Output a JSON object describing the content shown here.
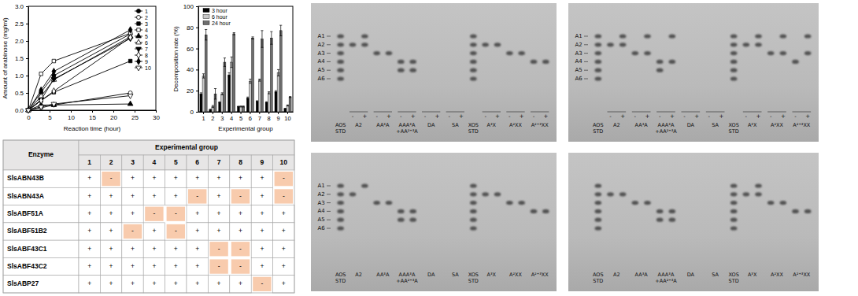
{
  "chart_data": [
    {
      "type": "line",
      "x_label": "Reaction time (hour)",
      "y_label": "Amount of arabinose (mg/ml)",
      "x": [
        0,
        3,
        6,
        24
      ],
      "xlim": [
        0,
        30
      ],
      "xticks": [
        0,
        5,
        10,
        15,
        20,
        25,
        30
      ],
      "ylim": [
        0,
        3
      ],
      "yticks": [
        {
          "value": 0,
          "label": "0.0"
        },
        0.5,
        {
          "value": 1,
          "label": "1.0"
        },
        1.5,
        {
          "value": 2,
          "label": "2.0"
        },
        2.5,
        {
          "value": 3,
          "label": "3.0"
        }
      ],
      "legend": "upper right",
      "grid": false,
      "series": [
        {
          "name": "1",
          "color": "#000000",
          "marker": "circle",
          "line_style": "solid",
          "values": [
            0,
            0.52,
            1.0,
            2.2
          ]
        },
        {
          "name": "2",
          "color": "#000000",
          "marker": "open-circle",
          "line_style": "solid",
          "values": [
            0,
            0.07,
            0.15,
            0.5
          ]
        },
        {
          "name": "3",
          "color": "#000000",
          "marker": "square",
          "line_style": "solid",
          "values": [
            0,
            0.28,
            0.52,
            1.42
          ]
        },
        {
          "name": "4",
          "color": "#000000",
          "marker": "open-square",
          "line_style": "solid",
          "values": [
            0,
            1.05,
            1.42,
            2.22
          ]
        },
        {
          "name": "5",
          "color": "#000000",
          "marker": "triangle",
          "line_style": "solid",
          "values": [
            0,
            0.15,
            0.15,
            0.18
          ]
        },
        {
          "name": "6",
          "color": "#000000",
          "marker": "open-triangle",
          "line_style": "solid",
          "values": [
            0,
            0.4,
            0.88,
            2.12
          ]
        },
        {
          "name": "7",
          "color": "#000000",
          "marker": "triangle-down",
          "line_style": "solid",
          "values": [
            0,
            0.3,
            0.9,
            2.07
          ]
        },
        {
          "name": "8",
          "color": "#000000",
          "marker": "open-diamond",
          "line_style": "solid",
          "values": [
            0,
            0.28,
            0.55,
            2.1
          ]
        },
        {
          "name": "9",
          "color": "#000000",
          "marker": "diamond",
          "line_style": "solid",
          "values": [
            0,
            0.58,
            1.12,
            2.32
          ]
        },
        {
          "name": "10",
          "color": "#000000",
          "marker": "open-triangle-down",
          "line_style": "solid",
          "values": [
            0,
            0.1,
            0.18,
            0.42
          ]
        }
      ]
    },
    {
      "type": "bar",
      "x_label": "Experimental group",
      "y_label": "Decomposition rate (%)",
      "categories": [
        "1",
        "2",
        "3",
        "4",
        "5",
        "6",
        "7",
        "8",
        "9",
        "10"
      ],
      "ylim": [
        0,
        100
      ],
      "yticks": [
        0,
        20,
        40,
        60,
        80,
        100
      ],
      "legend": "upper left",
      "grid": false,
      "series": [
        {
          "name": "3 hour",
          "color": "#000000",
          "values": [
            17,
            2,
            9,
            35,
            5,
            13,
            10,
            9,
            19,
            3
          ],
          "errors": [
            1,
            0.5,
            0.5,
            2,
            0.3,
            1,
            0.5,
            0.5,
            1,
            0.3
          ]
        },
        {
          "name": "6 hour",
          "color": "#c8c8c8",
          "values": [
            34,
            5,
            17,
            47,
            5,
            29,
            30,
            18,
            37,
            6
          ],
          "errors": [
            2,
            1,
            1,
            5,
            0.5,
            2,
            1,
            1,
            3,
            0.5
          ]
        },
        {
          "name": "24 hour",
          "color": "#6e6e6e",
          "values": [
            73,
            17,
            47,
            74,
            5,
            70,
            69,
            70,
            77,
            14
          ],
          "errors": [
            5,
            5,
            4,
            1,
            0.5,
            1,
            8,
            6,
            5,
            0.5
          ]
        }
      ]
    }
  ],
  "table": {
    "header": "Enzyme",
    "group_header": "Experimental group",
    "columns": [
      "1",
      "2",
      "3",
      "4",
      "5",
      "6",
      "7",
      "8",
      "9",
      "10"
    ],
    "rows": [
      {
        "enzyme": "SlsABN43B",
        "cells": [
          "+",
          "-",
          "+",
          "+",
          "+",
          "+",
          "+",
          "+",
          "+",
          "-"
        ]
      },
      {
        "enzyme": "SlsABN43A",
        "cells": [
          "+",
          "+",
          "+",
          "+",
          "+",
          "-",
          "+",
          "-",
          "+",
          "-"
        ]
      },
      {
        "enzyme": "SlsABF51A",
        "cells": [
          "+",
          "+",
          "+",
          "-",
          "-",
          "+",
          "+",
          "+",
          "+",
          "+"
        ]
      },
      {
        "enzyme": "SlsABF51B2",
        "cells": [
          "+",
          "+",
          "-",
          "+",
          "-",
          "+",
          "+",
          "+",
          "+",
          "+"
        ]
      },
      {
        "enzyme": "SlsABF43C1",
        "cells": [
          "+",
          "+",
          "+",
          "+",
          "+",
          "+",
          "-",
          "-",
          "+",
          "+"
        ]
      },
      {
        "enzyme": "SlsABF43C2",
        "cells": [
          "+",
          "+",
          "+",
          "+",
          "+",
          "+",
          "-",
          "-",
          "+",
          "+"
        ]
      },
      {
        "enzyme": "SlsABP27",
        "cells": [
          "+",
          "+",
          "+",
          "+",
          "+",
          "+",
          "+",
          "+",
          "-",
          "+"
        ]
      }
    ]
  },
  "gels": [
    {
      "row_labels": [
        "A1",
        "A2",
        "A3",
        "A4",
        "A5",
        "A6"
      ],
      "groups": [
        {
          "label": [
            "AOS",
            "STD"
          ],
          "lanes": [
            {
              "bands": [
                1,
                2,
                3,
                4,
                5,
                6
              ]
            }
          ]
        },
        {
          "label": [
            "A2"
          ],
          "lanes": [
            {
              "sign": "-",
              "bands": [
                2
              ]
            },
            {
              "sign": "+",
              "bands": [
                1,
                2
              ]
            }
          ]
        },
        {
          "label": [
            "AA³A"
          ],
          "lanes": [
            {
              "sign": "-",
              "bands": [
                3
              ]
            },
            {
              "sign": "+",
              "bands": [
                3
              ]
            }
          ]
        },
        {
          "label": [
            "AAA³A",
            "+AA²⁺³A"
          ],
          "lanes": [
            {
              "sign": "-",
              "bands": [
                4,
                5
              ]
            },
            {
              "sign": "+",
              "bands": [
                4,
                5
              ]
            }
          ]
        },
        {
          "label": [
            "DA"
          ],
          "lanes": [
            {
              "sign": "-",
              "bands": []
            },
            {
              "sign": "+",
              "bands": []
            }
          ]
        },
        {
          "label": [
            "SA"
          ],
          "lanes": [
            {
              "sign": "-",
              "bands": []
            },
            {
              "sign": "+",
              "bands": []
            }
          ]
        },
        {
          "label": [
            "XOS",
            "STD"
          ],
          "lanes": [
            {
              "bands": [
                1,
                2,
                3,
                4,
                5,
                6
              ]
            }
          ]
        },
        {
          "label": [
            "A³X"
          ],
          "lanes": [
            {
              "sign": "-",
              "bands": [
                2
              ]
            },
            {
              "sign": "+",
              "bands": [
                2
              ]
            }
          ]
        },
        {
          "label": [
            "A²XX"
          ],
          "lanes": [
            {
              "sign": "-",
              "bands": [
                3
              ]
            },
            {
              "sign": "+",
              "bands": [
                3
              ]
            }
          ]
        },
        {
          "label": [
            "A²⁺³XX"
          ],
          "lanes": [
            {
              "sign": "-",
              "bands": [
                4
              ]
            },
            {
              "sign": "+",
              "bands": [
                4
              ]
            }
          ]
        }
      ]
    },
    {
      "row_labels": [
        "A1",
        "A2",
        "A3",
        "A4",
        "A5",
        "A6"
      ],
      "groups": [
        {
          "label": [
            "AOS",
            "STD"
          ],
          "lanes": [
            {
              "bands": [
                1,
                2,
                3,
                4,
                5,
                6
              ]
            }
          ]
        },
        {
          "label": [
            "A2"
          ],
          "lanes": [
            {
              "sign": "-",
              "bands": [
                2
              ]
            },
            {
              "sign": "+",
              "bands": [
                1,
                2
              ]
            }
          ]
        },
        {
          "label": [
            "AA³A"
          ],
          "lanes": [
            {
              "sign": "-",
              "bands": [
                3
              ]
            },
            {
              "sign": "+",
              "bands": [
                1,
                3
              ]
            }
          ]
        },
        {
          "label": [
            "AAA³A",
            "+AA²⁺³A"
          ],
          "lanes": [
            {
              "sign": "-",
              "bands": [
                4,
                5
              ]
            },
            {
              "sign": "+",
              "bands": [
                1,
                4
              ]
            }
          ]
        },
        {
          "label": [
            "DA"
          ],
          "lanes": [
            {
              "sign": "-",
              "bands": []
            },
            {
              "sign": "+",
              "bands": []
            }
          ]
        },
        {
          "label": [
            "SA"
          ],
          "lanes": [
            {
              "sign": "-",
              "bands": []
            },
            {
              "sign": "+",
              "bands": []
            }
          ]
        },
        {
          "label": [
            "XOS",
            "STD"
          ],
          "lanes": [
            {
              "bands": [
                1,
                2,
                3,
                4,
                5,
                6
              ]
            }
          ]
        },
        {
          "label": [
            "A³X"
          ],
          "lanes": [
            {
              "sign": "-",
              "bands": [
                2
              ]
            },
            {
              "sign": "+",
              "bands": [
                1,
                2
              ]
            }
          ]
        },
        {
          "label": [
            "A²XX"
          ],
          "lanes": [
            {
              "sign": "-",
              "bands": [
                3
              ]
            },
            {
              "sign": "+",
              "bands": [
                1,
                3
              ]
            }
          ]
        },
        {
          "label": [
            "A²⁺³XX"
          ],
          "lanes": [
            {
              "sign": "-",
              "bands": [
                4
              ]
            },
            {
              "sign": "+",
              "bands": [
                1,
                3
              ]
            }
          ]
        }
      ]
    },
    {
      "row_labels": [
        "A1",
        "A2",
        "A3",
        "A4",
        "A5",
        "A6"
      ],
      "groups": [
        {
          "label": [
            "AOS",
            "STD"
          ],
          "lanes": [
            {
              "bands": [
                1,
                2,
                3,
                4,
                5,
                6
              ]
            }
          ]
        },
        {
          "label": [
            "A2"
          ],
          "lanes": [
            {
              "bands": [
                2
              ]
            },
            {
              "bands": [
                1
              ]
            }
          ]
        },
        {
          "label": [
            "AA³A"
          ],
          "lanes": [
            {
              "bands": [
                3
              ]
            },
            {
              "bands": [
                3
              ]
            }
          ]
        },
        {
          "label": [
            "AAA³A",
            "+AA²⁺³A"
          ],
          "lanes": [
            {
              "bands": [
                4,
                5
              ]
            },
            {
              "bands": [
                4,
                5
              ]
            }
          ]
        },
        {
          "label": [
            "DA"
          ],
          "lanes": [
            {
              "bands": []
            },
            {
              "bands": []
            }
          ]
        },
        {
          "label": [
            "SA"
          ],
          "lanes": [
            {
              "bands": []
            },
            {
              "bands": []
            }
          ]
        },
        {
          "label": [
            "XOS",
            "STD"
          ],
          "lanes": [
            {
              "bands": [
                1,
                2,
                3,
                4,
                5,
                6
              ]
            }
          ]
        },
        {
          "label": [
            "A³X"
          ],
          "lanes": [
            {
              "bands": [
                2
              ]
            },
            {
              "bands": [
                2
              ]
            }
          ]
        },
        {
          "label": [
            "A²XX"
          ],
          "lanes": [
            {
              "bands": [
                3
              ]
            },
            {
              "bands": [
                3
              ]
            }
          ]
        },
        {
          "label": [
            "A²⁺³XX"
          ],
          "lanes": [
            {
              "bands": [
                4
              ]
            },
            {
              "bands": [
                4
              ]
            }
          ]
        }
      ]
    },
    {
      "groups": [
        {
          "label": [
            "AOS",
            "STD"
          ],
          "lanes": [
            {
              "bands": [
                1,
                2,
                3,
                4,
                5,
                6
              ]
            }
          ]
        },
        {
          "label": [
            "A2"
          ],
          "lanes": [
            {
              "bands": [
                2
              ]
            },
            {
              "bands": [
                2
              ]
            }
          ]
        },
        {
          "label": [
            "AA³A"
          ],
          "lanes": [
            {
              "bands": [
                3
              ]
            },
            {
              "bands": [
                3
              ]
            }
          ]
        },
        {
          "label": [
            "AAA³A",
            "+AA²⁺³A"
          ],
          "lanes": [
            {
              "bands": [
                4,
                5
              ]
            },
            {
              "bands": [
                4,
                5
              ]
            }
          ]
        },
        {
          "label": [
            "DA"
          ],
          "lanes": [
            {
              "bands": []
            },
            {
              "bands": []
            }
          ]
        },
        {
          "label": [
            "SA"
          ],
          "lanes": [
            {
              "bands": []
            },
            {
              "bands": []
            }
          ]
        },
        {
          "label": [
            "XOS",
            "STD"
          ],
          "lanes": [
            {
              "bands": [
                1,
                2,
                3,
                4,
                5,
                6
              ]
            }
          ]
        },
        {
          "label": [
            "A³X"
          ],
          "lanes": [
            {
              "bands": [
                2
              ]
            },
            {
              "bands": [
                1,
                2
              ]
            }
          ]
        },
        {
          "label": [
            "A²XX"
          ],
          "lanes": [
            {
              "bands": [
                3
              ]
            },
            {
              "bands": [
                3
              ]
            }
          ]
        },
        {
          "label": [
            "A²⁺³XX"
          ],
          "lanes": [
            {
              "bands": [
                4
              ]
            },
            {
              "bands": [
                4
              ]
            }
          ]
        }
      ]
    }
  ]
}
